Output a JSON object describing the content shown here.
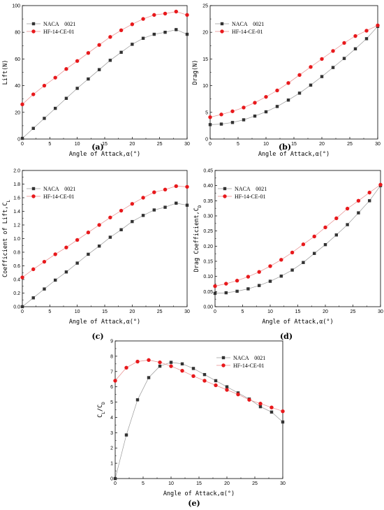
{
  "colors": {
    "naca": "#333333",
    "hf": "#e8191c",
    "naca_line": "#9a9a9a",
    "hf_line": "#e88a8a",
    "axis": "#000000"
  },
  "chart_data": [
    {
      "type": "line",
      "panel_label": "(a)",
      "xlabel": "Angle of Attack,α(°)",
      "ylabel": "Lift(N)",
      "xlim": [
        0,
        30
      ],
      "ylim": [
        0,
        100
      ],
      "xticks": [
        0,
        5,
        10,
        15,
        20,
        25,
        30
      ],
      "yticks": [
        0,
        20,
        40,
        60,
        80,
        100
      ],
      "legend": "top-left",
      "x": [
        0,
        2,
        4,
        6,
        8,
        10,
        12,
        14,
        16,
        18,
        20,
        22,
        24,
        26,
        28,
        30
      ],
      "series": [
        {
          "name": "NACA    0021",
          "marker": "square",
          "values": [
            0.5,
            8,
            15.5,
            23,
            30.5,
            38,
            45,
            52,
            59,
            65,
            71,
            75.5,
            78.5,
            80,
            82,
            78.5
          ]
        },
        {
          "name": "HF-14-CE-01",
          "marker": "circle",
          "values": [
            26,
            33.5,
            40,
            46,
            52.5,
            58.5,
            64.5,
            70.5,
            76.5,
            81.5,
            86,
            90,
            93,
            94,
            95.5,
            93
          ]
        }
      ]
    },
    {
      "type": "line",
      "panel_label": "(b)",
      "xlabel": "Angle of Attack,α(°)",
      "ylabel": "Drag(N)",
      "xlim": [
        0,
        30
      ],
      "ylim": [
        0,
        25
      ],
      "xticks": [
        0,
        5,
        10,
        15,
        20,
        25,
        30
      ],
      "yticks": [
        0,
        5,
        10,
        15,
        20,
        25
      ],
      "legend": "top-left",
      "x": [
        0,
        2,
        4,
        6,
        8,
        10,
        12,
        14,
        16,
        18,
        20,
        22,
        24,
        26,
        28,
        30
      ],
      "series": [
        {
          "name": "NACA    0021",
          "marker": "square",
          "values": [
            2.7,
            2.8,
            3.1,
            3.6,
            4.3,
            5.1,
            6.1,
            7.3,
            8.6,
            10.1,
            11.7,
            13.4,
            15.1,
            16.9,
            18.8,
            21.1
          ]
        },
        {
          "name": "HF-14-CE-01",
          "marker": "circle",
          "values": [
            4.1,
            4.6,
            5.2,
            5.9,
            6.8,
            7.9,
            9.1,
            10.5,
            12.0,
            13.5,
            15.0,
            16.5,
            18.0,
            19.3,
            20.3,
            21.3
          ]
        }
      ]
    },
    {
      "type": "line",
      "panel_label": "(c)",
      "xlabel": "Angle of Attack,α(°)",
      "ylabel": "Coefficient of Lift,C",
      "ylabel_sub": "L",
      "xlim": [
        0,
        30
      ],
      "ylim": [
        0.0,
        2.0
      ],
      "xticks": [
        0,
        5,
        10,
        15,
        20,
        25,
        30
      ],
      "yticks": [
        0.0,
        0.2,
        0.4,
        0.6,
        0.8,
        1.0,
        1.2,
        1.4,
        1.6,
        1.8,
        2.0
      ],
      "ytick_labels": [
        "0.0",
        "0.2",
        "0.4",
        "0.6",
        "0.8",
        "1.0",
        "1.2",
        "1.4",
        "1.6",
        "1.8",
        "2.0"
      ],
      "legend": "top-left",
      "x": [
        0,
        2,
        4,
        6,
        8,
        10,
        12,
        14,
        16,
        18,
        20,
        22,
        24,
        26,
        28,
        30
      ],
      "series": [
        {
          "name": "NACA    0021",
          "marker": "square",
          "values": [
            0.0,
            0.13,
            0.26,
            0.39,
            0.51,
            0.64,
            0.77,
            0.89,
            1.02,
            1.13,
            1.25,
            1.34,
            1.42,
            1.46,
            1.52,
            1.49
          ]
        },
        {
          "name": "HF-14-CE-01",
          "marker": "circle",
          "values": [
            0.43,
            0.55,
            0.66,
            0.77,
            0.87,
            0.98,
            1.09,
            1.2,
            1.31,
            1.41,
            1.51,
            1.6,
            1.68,
            1.72,
            1.77,
            1.76
          ]
        }
      ]
    },
    {
      "type": "line",
      "panel_label": "(d)",
      "xlabel": "Angle of Attack,α(°)",
      "ylabel": "Drag Coefficient,C",
      "ylabel_sub": "D",
      "xlim": [
        0,
        30
      ],
      "ylim": [
        0.0,
        0.45
      ],
      "xticks": [
        0,
        5,
        10,
        15,
        20,
        25,
        30
      ],
      "yticks": [
        0.0,
        0.05,
        0.1,
        0.15,
        0.2,
        0.25,
        0.3,
        0.35,
        0.4,
        0.45
      ],
      "ytick_labels": [
        "0.00",
        "0.05",
        "0.10",
        "0.15",
        "0.20",
        "0.25",
        "0.30",
        "0.35",
        "0.40",
        "0.45"
      ],
      "legend": "top-left",
      "x": [
        0,
        2,
        4,
        6,
        8,
        10,
        12,
        14,
        16,
        18,
        20,
        22,
        24,
        26,
        28,
        30
      ],
      "series": [
        {
          "name": "NACA    0021",
          "marker": "square",
          "values": [
            0.044,
            0.046,
            0.051,
            0.059,
            0.07,
            0.084,
            0.101,
            0.121,
            0.146,
            0.176,
            0.205,
            0.237,
            0.271,
            0.31,
            0.35,
            0.4
          ]
        },
        {
          "name": "HF-14-CE-01",
          "marker": "circle",
          "values": [
            0.068,
            0.076,
            0.086,
            0.099,
            0.115,
            0.134,
            0.155,
            0.179,
            0.206,
            0.232,
            0.262,
            0.292,
            0.324,
            0.35,
            0.377,
            0.403
          ]
        }
      ]
    },
    {
      "type": "line",
      "panel_label": "(e)",
      "xlabel": "Angle of Attack,α(°)",
      "ylabel": "C",
      "ylabel_sub": "L",
      "ylabel_mid": "/C",
      "ylabel_sub2": "D",
      "xlim": [
        0,
        30
      ],
      "ylim": [
        0,
        9
      ],
      "xticks": [
        0,
        5,
        10,
        15,
        20,
        25,
        30
      ],
      "yticks": [
        0,
        1,
        2,
        3,
        4,
        5,
        6,
        7,
        8,
        9
      ],
      "legend": "top-right",
      "x": [
        0,
        2,
        4,
        6,
        8,
        10,
        12,
        14,
        16,
        18,
        20,
        22,
        24,
        26,
        28,
        30
      ],
      "series": [
        {
          "name": "NACA    0021",
          "marker": "square",
          "values": [
            0.0,
            2.85,
            5.15,
            6.6,
            7.35,
            7.6,
            7.5,
            7.2,
            6.8,
            6.4,
            6.0,
            5.6,
            5.2,
            4.7,
            4.35,
            3.7
          ]
        },
        {
          "name": "HF-14-CE-01",
          "marker": "circle",
          "values": [
            6.4,
            7.25,
            7.65,
            7.75,
            7.6,
            7.35,
            7.05,
            6.7,
            6.4,
            6.1,
            5.8,
            5.5,
            5.15,
            4.9,
            4.65,
            4.4
          ]
        }
      ]
    }
  ]
}
